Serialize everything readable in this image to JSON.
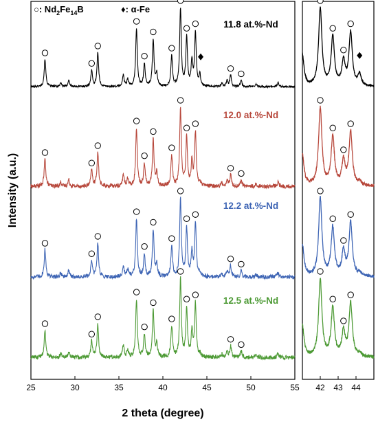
{
  "legend": {
    "circle_symbol": "○",
    "circle_label": ": Nd",
    "circle_sub1": "2",
    "circle_mid": "Fe",
    "circle_sub2": "14",
    "circle_end": "B",
    "diamond_symbol": "♦",
    "diamond_label": ": α-Fe"
  },
  "chart_data": {
    "type": "line",
    "xlabel": "2 theta (degree)",
    "ylabel": "Intensity (a.u.)",
    "main_panel": {
      "xlim": [
        25,
        55
      ],
      "xticks": [
        25,
        30,
        35,
        40,
        45,
        50,
        55
      ]
    },
    "inset_panel": {
      "xlim": [
        41,
        45
      ],
      "xticks": [
        42,
        43,
        44
      ]
    },
    "legend_entries": [
      "○: Nd2Fe14B",
      "♦: α-Fe"
    ],
    "peaks": [
      {
        "x": 26.6,
        "h": 0.34
      },
      {
        "x": 28.4,
        "h": 0.05
      },
      {
        "x": 29.3,
        "h": 0.08
      },
      {
        "x": 31.9,
        "h": 0.2
      },
      {
        "x": 32.6,
        "h": 0.42
      },
      {
        "x": 35.5,
        "h": 0.14
      },
      {
        "x": 36.0,
        "h": 0.09
      },
      {
        "x": 37.0,
        "h": 0.72
      },
      {
        "x": 37.9,
        "h": 0.28
      },
      {
        "x": 38.9,
        "h": 0.58
      },
      {
        "x": 39.3,
        "h": 0.15
      },
      {
        "x": 41.0,
        "h": 0.38
      },
      {
        "x": 42.0,
        "h": 0.96
      },
      {
        "x": 42.7,
        "h": 0.6
      },
      {
        "x": 43.3,
        "h": 0.3
      },
      {
        "x": 43.7,
        "h": 0.66
      },
      {
        "x": 44.2,
        "h": 0.14
      },
      {
        "x": 46.7,
        "h": 0.04
      },
      {
        "x": 47.3,
        "h": 0.07
      },
      {
        "x": 47.7,
        "h": 0.14
      },
      {
        "x": 48.9,
        "h": 0.08
      },
      {
        "x": 50.6,
        "h": 0.03
      },
      {
        "x": 53.1,
        "h": 0.05
      }
    ],
    "circle_marker_peaks": [
      26.6,
      31.9,
      32.6,
      37.0,
      37.9,
      38.9,
      41.0,
      42.0,
      42.7,
      43.7,
      47.7,
      48.9
    ],
    "inset_circle_marker_peaks": [
      42.0,
      42.7,
      43.3,
      43.7
    ],
    "series": [
      {
        "name": "11.8 at.%-Nd",
        "color": "#000000",
        "alpha_fe": true
      },
      {
        "name": "12.0 at.%-Nd",
        "color": "#b7473b",
        "alpha_fe": false
      },
      {
        "name": "12.2 at.%-Nd",
        "color": "#3d64b4",
        "alpha_fe": false
      },
      {
        "name": "12.5 at.%-Nd",
        "color": "#4d9a35",
        "alpha_fe": false
      }
    ]
  }
}
